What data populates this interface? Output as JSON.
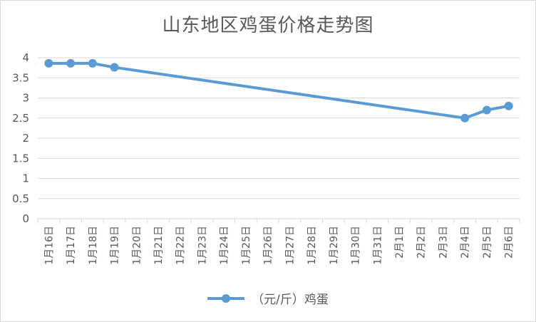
{
  "chart_data": {
    "type": "line",
    "title": "山东地区鸡蛋价格走势图",
    "categories": [
      "1月16日",
      "1月17日",
      "1月18日",
      "1月19日",
      "1月20日",
      "1月21日",
      "1月22日",
      "1月23日",
      "1月24日",
      "1月25日",
      "1月26日",
      "1月27日",
      "1月28日",
      "1月29日",
      "1月30日",
      "1月31日",
      "2月1日",
      "2月2日",
      "2月3日",
      "2月4日",
      "2月5日",
      "2月6日"
    ],
    "series": [
      {
        "name": "（元/斤）鸡蛋",
        "color": "#5b9bd5",
        "points": [
          {
            "x": "1月16日",
            "y": 3.86
          },
          {
            "x": "1月17日",
            "y": 3.86
          },
          {
            "x": "1月18日",
            "y": 3.86
          },
          {
            "x": "1月19日",
            "y": 3.76
          },
          {
            "x": "2月4日",
            "y": 2.5
          },
          {
            "x": "2月5日",
            "y": 2.7
          },
          {
            "x": "2月6日",
            "y": 2.8
          }
        ]
      }
    ],
    "yticks": [
      "0",
      "0.5",
      "1",
      "1.5",
      "2",
      "2.5",
      "3",
      "3.5",
      "4"
    ],
    "ylim": [
      0,
      4
    ],
    "xlabel": "",
    "ylabel": "",
    "grid": true,
    "legend_position": "bottom"
  }
}
